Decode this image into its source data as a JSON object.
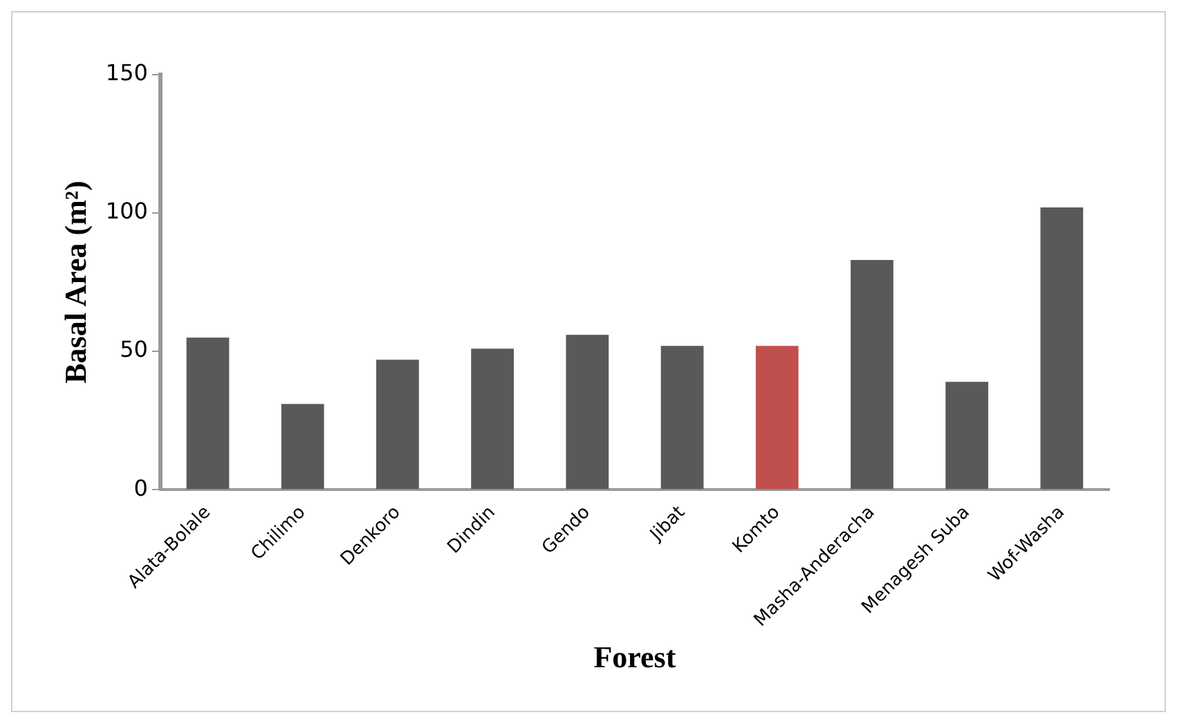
{
  "chart_data": {
    "type": "bar",
    "xlabel": "Forest",
    "ylabel": "Basal Area (m²)",
    "categories": [
      "Alata-Bolale",
      "Chilimo",
      "Denkoro",
      "Dindin",
      "Gendo",
      "Jibat",
      "Komto",
      "Masha-Anderacha",
      "Menagesh Suba",
      "Wof-Washa"
    ],
    "values": [
      55,
      31,
      47,
      51,
      56,
      52,
      52,
      83,
      39,
      102
    ],
    "colors": [
      "#595959",
      "#595959",
      "#595959",
      "#595959",
      "#595959",
      "#595959",
      "#c0504d",
      "#595959",
      "#595959",
      "#595959"
    ],
    "ylim": [
      0,
      150
    ],
    "yticks": [
      0,
      50,
      100,
      150
    ],
    "grid": false,
    "legend": false
  }
}
